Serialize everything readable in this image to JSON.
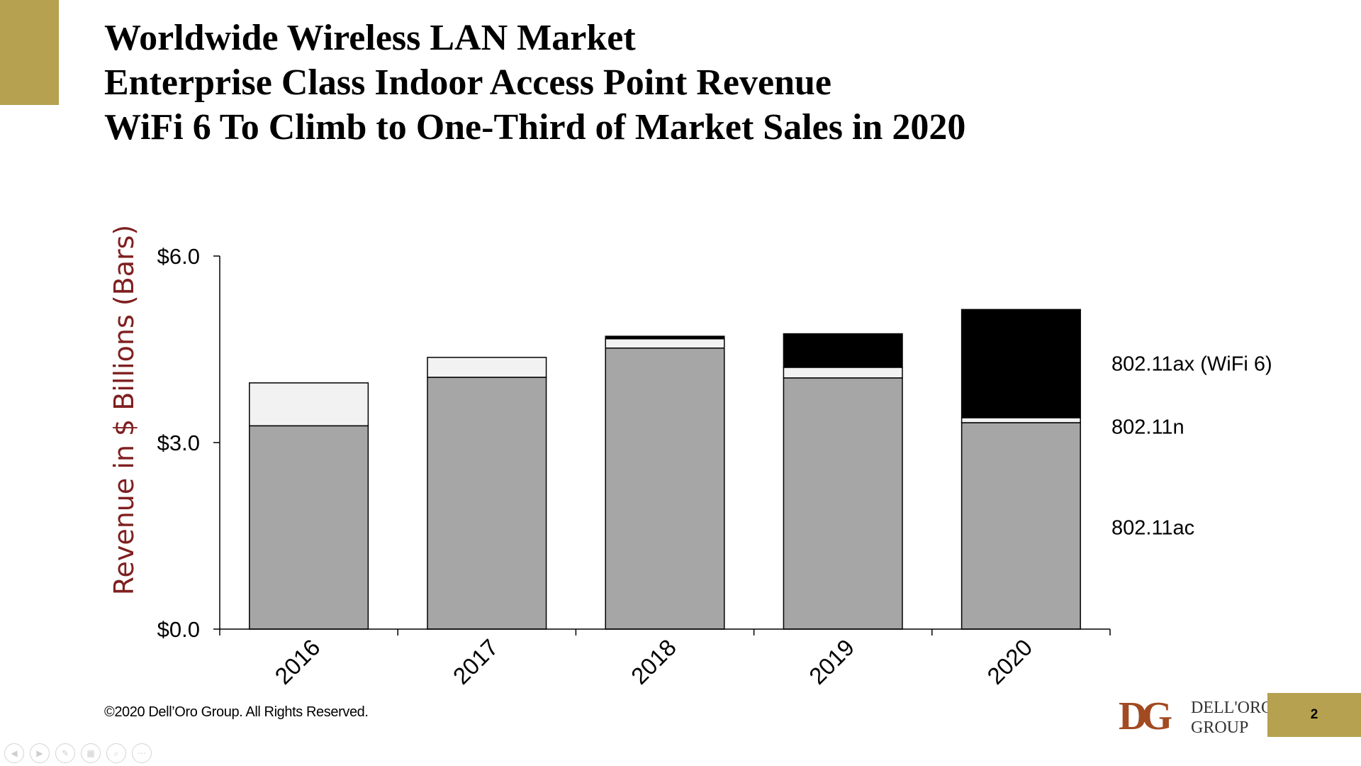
{
  "slide": {
    "title_lines": [
      "Worldwide Wireless LAN Market",
      "Enterprise Class Indoor Access Point Revenue",
      "WiFi 6 To Climb to One-Third of Market Sales in 2020"
    ],
    "copyright": "©2020 Dell’Oro Group. All Rights Reserved.",
    "logo": {
      "mark": "DG",
      "name_line1": "DELL'ORO",
      "name_line2": "GROUP"
    },
    "page_number": "2",
    "accent_color": "#b5a14f"
  },
  "chart_data": {
    "type": "bar",
    "stacked": true,
    "title": "",
    "ylabel": "Revenue in $ Billions (Bars)",
    "ylabel_color": "#7f1f1f",
    "ylim": [
      0,
      6
    ],
    "yticks": [
      0,
      3,
      6
    ],
    "ytick_labels": [
      "$0.0",
      "$3.0",
      "$6.0"
    ],
    "categories": [
      "2016",
      "2017",
      "2018",
      "2019",
      "2020"
    ],
    "series": [
      {
        "name": "802.11ac",
        "color": "#a6a6a6",
        "values": [
          3.27,
          4.05,
          4.52,
          4.04,
          3.32
        ]
      },
      {
        "name": "802.11n",
        "color": "#f2f2f2",
        "values": [
          0.69,
          0.32,
          0.15,
          0.17,
          0.08
        ]
      },
      {
        "name": "802.11ax (WiFi 6)",
        "color": "#000000",
        "values": [
          0.0,
          0.0,
          0.04,
          0.54,
          1.74
        ]
      }
    ],
    "legend_position": "right",
    "grid": false
  }
}
